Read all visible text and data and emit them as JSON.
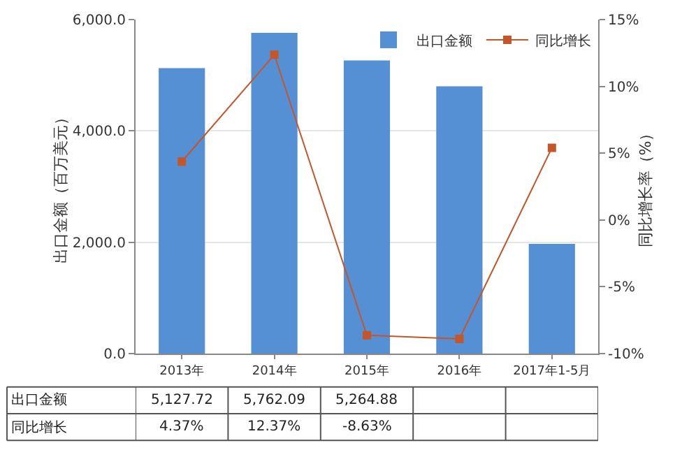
{
  "chart_data": {
    "type": "bar",
    "ylabel": "出口金额（百万美元）",
    "y2label": "同比增长率（%）",
    "categories": [
      "2013年",
      "2014年",
      "2015年",
      "2016年",
      "2017年1-5月"
    ],
    "series": [
      {
        "name": "出口金额",
        "color": "#5590d4",
        "values": [
          5127.72,
          5762.09,
          5264.88,
          4800,
          1970
        ],
        "value_labels": [
          "5,127.72",
          "5,762.09",
          "5,264.88",
          null,
          null
        ]
      },
      {
        "name": "同比增长",
        "type": "line",
        "axis": "y2",
        "color": "#c5562a",
        "marker": "square",
        "values": [
          4.37,
          12.37,
          -8.63,
          -8.9,
          5.4
        ],
        "value_labels": [
          "4.37%",
          "12.37%",
          "-8.63%",
          null,
          null
        ]
      }
    ],
    "ylim": [
      0,
      6000
    ],
    "yticks": [
      {
        "value": 0,
        "label": "0.0"
      },
      {
        "value": 2000,
        "label": "2,000.0"
      },
      {
        "value": 4000,
        "label": "4,000.0"
      },
      {
        "value": 6000,
        "label": "6,000.0"
      }
    ],
    "y2lim": [
      -10,
      15
    ],
    "y2ticks": [
      {
        "value": -10,
        "label": "-10%"
      },
      {
        "value": -5,
        "label": "-5%"
      },
      {
        "value": 0,
        "label": "0%"
      },
      {
        "value": 5,
        "label": "5%"
      },
      {
        "value": 10,
        "label": "10%"
      },
      {
        "value": 15,
        "label": "15%"
      }
    ],
    "grid": "y",
    "legend": "top right"
  }
}
